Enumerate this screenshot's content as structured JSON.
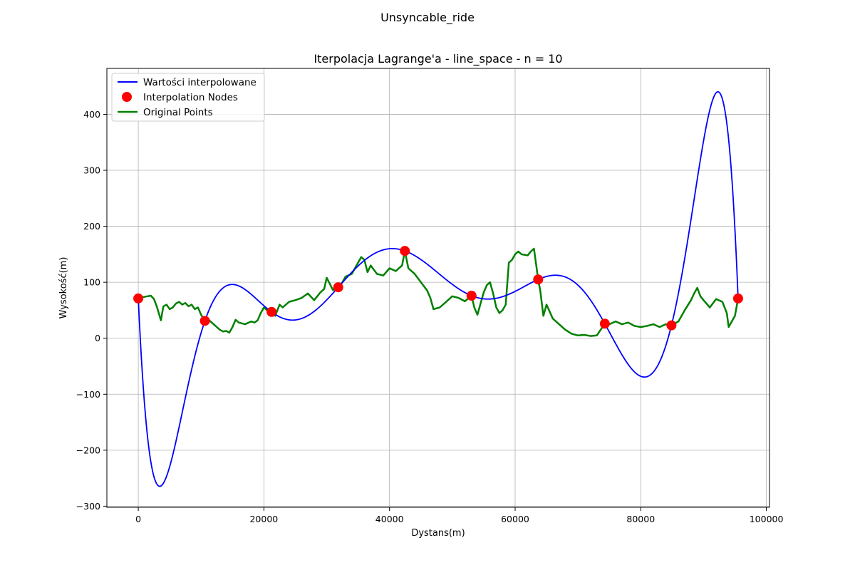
{
  "figure": {
    "suptitle": "Unsyncable_ride"
  },
  "chart_data": {
    "type": "line",
    "title": "Iterpolacja Lagrange'a - line_space - n = 10",
    "xlabel": "Dystans(m)",
    "ylabel": "Wysokość(m)",
    "xlim": [
      -5000,
      100500
    ],
    "ylim": [
      -302,
      482
    ],
    "xticks": [
      0,
      20000,
      40000,
      60000,
      80000,
      100000
    ],
    "yticks": [
      -300,
      -200,
      -100,
      0,
      100,
      200,
      300,
      400
    ],
    "xtick_labels": [
      "0",
      "20000",
      "40000",
      "60000",
      "80000",
      "100000"
    ],
    "ytick_labels": [
      "−300",
      "−200",
      "−100",
      "0",
      "100",
      "200",
      "300",
      "400"
    ],
    "grid": true,
    "legend_position": "upper-left",
    "series": [
      {
        "name": "Wartości interpolowane",
        "color": "#0000ff",
        "kind": "lagrange",
        "range": [
          0,
          95500
        ]
      },
      {
        "name": "Interpolation Nodes",
        "color": "#ff0000",
        "kind": "scatter",
        "x": [
          0,
          10611,
          21222,
          31833,
          42444,
          53056,
          63667,
          74278,
          84889,
          95500
        ],
        "y": [
          71,
          31,
          47,
          91,
          156,
          76,
          105,
          26,
          23,
          71
        ]
      },
      {
        "name": "Original Points",
        "color": "#008000",
        "kind": "line",
        "x": [
          0,
          1000,
          2000,
          2500,
          3000,
          3600,
          4000,
          4500,
          5000,
          5500,
          6000,
          6500,
          7000,
          7500,
          8000,
          8500,
          9000,
          9500,
          10000,
          10611,
          11000,
          11500,
          12000,
          12500,
          13000,
          13500,
          14000,
          14500,
          15000,
          15500,
          16000,
          17000,
          18000,
          18500,
          19000,
          19500,
          20000,
          20500,
          21222,
          21800,
          22500,
          23000,
          24000,
          25000,
          26000,
          27000,
          28000,
          29000,
          29600,
          30000,
          31000,
          31833,
          32500,
          33000,
          34000,
          35000,
          35500,
          36000,
          36500,
          37000,
          38000,
          39000,
          40000,
          41000,
          42000,
          42444,
          43000,
          44000,
          45000,
          46000,
          46500,
          47000,
          48000,
          49000,
          50000,
          51000,
          52000,
          53056,
          53500,
          54000,
          55000,
          55500,
          56000,
          56500,
          57000,
          57500,
          58000,
          58500,
          59000,
          59500,
          60000,
          60500,
          61000,
          62000,
          62500,
          63000,
          63667,
          64000,
          64500,
          65000,
          66000,
          67000,
          68000,
          69000,
          70000,
          71000,
          72000,
          73000,
          74278,
          75000,
          76000,
          77000,
          78000,
          79000,
          80000,
          81000,
          82000,
          83000,
          84000,
          84889,
          86000,
          87000,
          88000,
          88500,
          89000,
          89500,
          90000,
          91000,
          92000,
          93000,
          93700,
          94000,
          95000,
          95500
        ],
        "y": [
          71,
          74,
          76,
          70,
          55,
          32,
          57,
          60,
          52,
          55,
          62,
          65,
          60,
          63,
          57,
          60,
          52,
          55,
          42,
          31,
          35,
          30,
          25,
          20,
          15,
          12,
          13,
          10,
          20,
          33,
          28,
          25,
          30,
          28,
          32,
          45,
          55,
          50,
          47,
          40,
          60,
          55,
          65,
          68,
          72,
          80,
          68,
          82,
          88,
          108,
          86,
          91,
          100,
          110,
          115,
          135,
          145,
          140,
          118,
          130,
          115,
          112,
          125,
          120,
          130,
          156,
          125,
          115,
          100,
          85,
          72,
          52,
          55,
          65,
          75,
          72,
          66,
          76,
          55,
          42,
          82,
          95,
          100,
          80,
          55,
          45,
          50,
          60,
          135,
          140,
          150,
          155,
          150,
          148,
          155,
          160,
          105,
          85,
          40,
          60,
          35,
          25,
          15,
          8,
          5,
          6,
          4,
          5,
          26,
          25,
          30,
          25,
          28,
          22,
          20,
          22,
          25,
          20,
          25,
          23,
          30,
          50,
          68,
          80,
          90,
          75,
          68,
          55,
          70,
          65,
          45,
          20,
          40,
          71
        ]
      }
    ]
  }
}
